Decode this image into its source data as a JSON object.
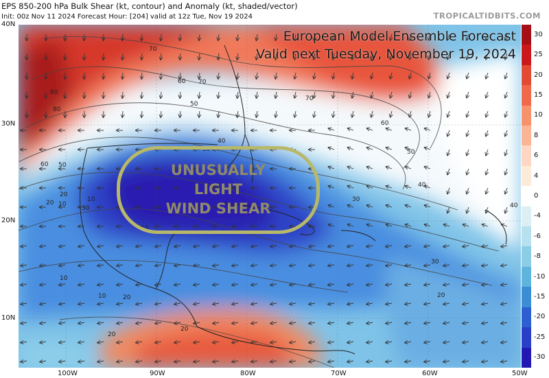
{
  "header": {
    "title": "EPS 850-200 hPa Bulk Shear (kt, contour) and Anomaly (kt, shaded/vector)",
    "init": "Init: 00z Nov 11 2024   Forecast Hour: [204]   valid at 12z Tue, Nov 19 2024",
    "brand": "TROPICALTIDBITS.COM"
  },
  "overlay": {
    "line1": "European Model Ensemble Forecast",
    "line2": "Valid next Tuesday, November 19, 2024"
  },
  "callout": {
    "line1": "UNUSUALLY",
    "line2": "LIGHT",
    "line3": "WIND SHEAR"
  },
  "axes": {
    "lat_labels": [
      "40N",
      "30N",
      "20N",
      "10N"
    ],
    "lon_labels": [
      "100W",
      "90W",
      "80W",
      "70W",
      "60W",
      "50W"
    ]
  },
  "colorbar": {
    "labels": [
      "30",
      "25",
      "20",
      "15",
      "10",
      "8",
      "6",
      "4",
      "0",
      "-4",
      "-6",
      "-8",
      "-10",
      "-15",
      "-20",
      "-25",
      "-30"
    ],
    "colors": [
      "#a50f15",
      "#cb181d",
      "#e34a33",
      "#f0694a",
      "#f7926c",
      "#fbb596",
      "#fdd7c3",
      "#fdebd9",
      "#ffffff",
      "#dbeff5",
      "#b7e1ef",
      "#8ccde6",
      "#5fb4dd",
      "#3b8ed4",
      "#2d5fd0",
      "#2a3fc8",
      "#2418b5"
    ]
  },
  "contour_labels": [
    "70",
    "70",
    "60",
    "60",
    "50",
    "50",
    "40",
    "40",
    "30",
    "30",
    "20",
    "20",
    "10",
    "10",
    "10",
    "20",
    "20",
    "20",
    "40",
    "70",
    "80",
    "80",
    "60",
    "50",
    "10",
    "30",
    "30",
    "10",
    "20"
  ]
}
